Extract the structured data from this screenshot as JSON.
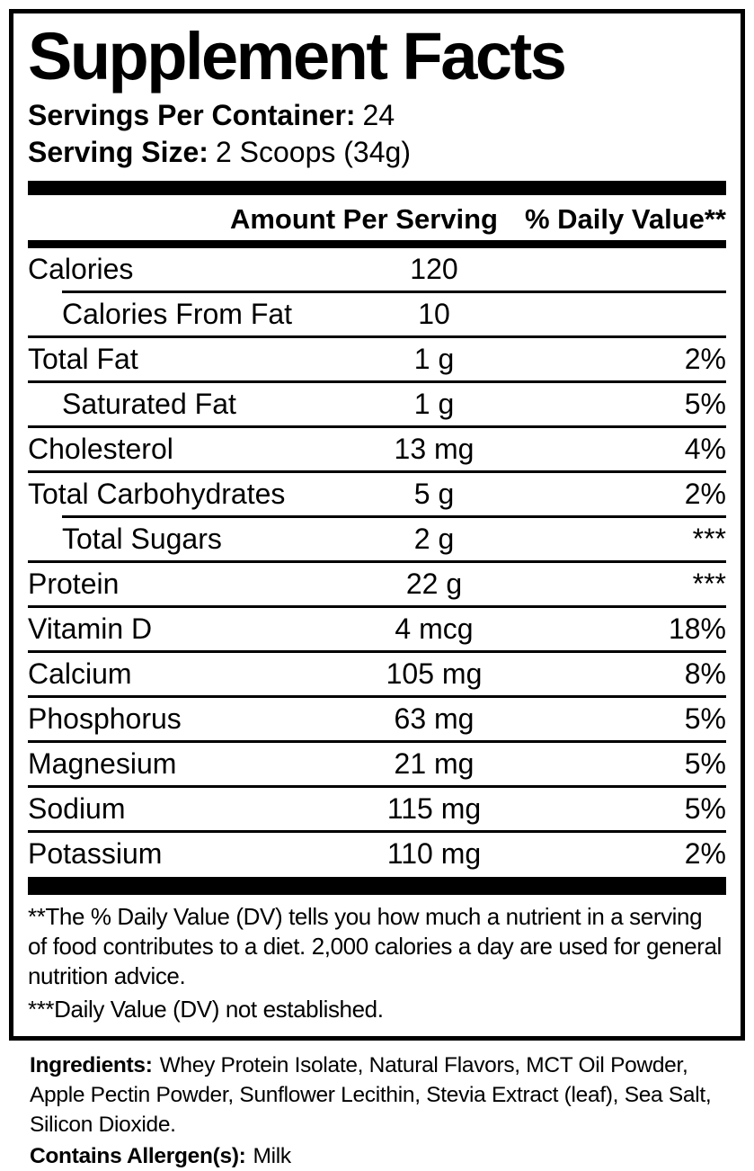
{
  "colors": {
    "text": "#000000",
    "background": "#ffffff"
  },
  "title": "Supplement Facts",
  "serving_info": {
    "servings_per_container_label": "Servings Per Container:",
    "servings_per_container_value": "24",
    "serving_size_label": "Serving Size:",
    "serving_size_value": "2 Scoops (34g)"
  },
  "table": {
    "amount_header": "Amount Per Serving",
    "daily_value_header": "% Daily Value**",
    "rows": [
      {
        "name": "Calories",
        "amount": "120",
        "dv": ""
      },
      {
        "name": "Calories From Fat",
        "amount": "10",
        "dv": ""
      },
      {
        "name": "Total Fat",
        "amount": "1 g",
        "dv": "2%"
      },
      {
        "name": "Saturated Fat",
        "amount": "1 g",
        "dv": "5%"
      },
      {
        "name": "Cholesterol",
        "amount": "13 mg",
        "dv": "4%"
      },
      {
        "name": "Total Carbohydrates",
        "amount": "5 g",
        "dv": "2%"
      },
      {
        "name": "Total Sugars",
        "amount": "2 g",
        "dv": "***"
      },
      {
        "name": "Protein",
        "amount": "22 g",
        "dv": "***"
      },
      {
        "name": "Vitamin D",
        "amount": "4 mcg",
        "dv": "18%"
      },
      {
        "name": "Calcium",
        "amount": "105 mg",
        "dv": "8%"
      },
      {
        "name": "Phosphorus",
        "amount": "63 mg",
        "dv": "5%"
      },
      {
        "name": "Magnesium",
        "amount": "21 mg",
        "dv": "5%"
      },
      {
        "name": "Sodium",
        "amount": "115 mg",
        "dv": "5%"
      },
      {
        "name": "Potassium",
        "amount": "110 mg",
        "dv": "2%"
      }
    ]
  },
  "footnotes": {
    "daily_value_note": "**The % Daily Value (DV) tells you how much a nutrient in a serving of food contributes to a diet. 2,000 calories a day are used for general nutrition advice.",
    "not_established_note": "***Daily Value (DV) not established."
  },
  "ingredients": {
    "label": "Ingredients:",
    "text": "Whey Protein Isolate, Natural Flavors, MCT Oil Powder, Apple Pectin Powder, Sunflower Lecithin, Stevia Extract (leaf), Sea Salt, Silicon Dioxide.",
    "allergen_label": "Contains Allergen(s):",
    "allergen_value": "Milk"
  }
}
